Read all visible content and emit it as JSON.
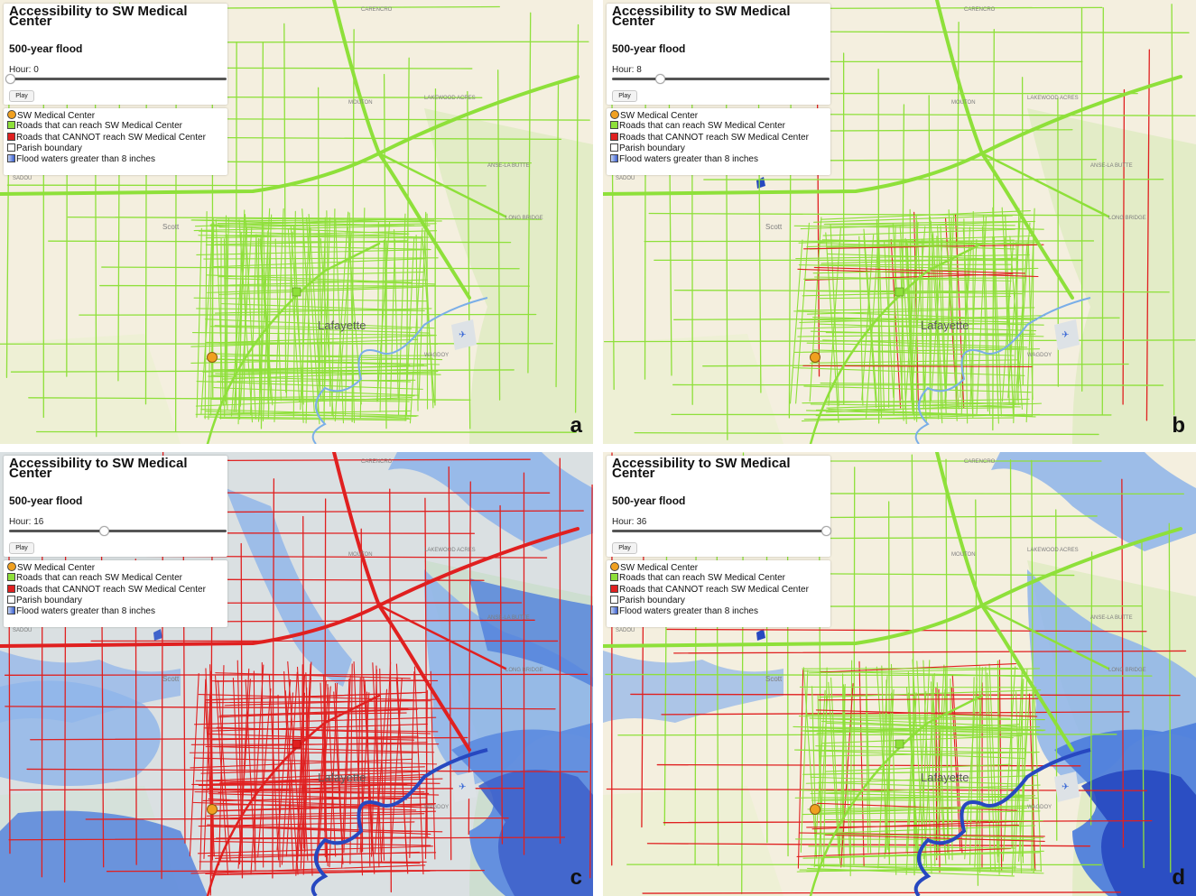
{
  "common": {
    "title": "Accessibility to SW Medical Center",
    "subtitle": "500-year flood",
    "play_label": "Play",
    "city_label": "Lafayette",
    "place_labels": [
      "Scott",
      "CARENCRO",
      "MOUTON",
      "LAKEWOOD ACRES",
      "ANSE-LA BUTTE",
      "LONG BRIDGE",
      "SADOU",
      "WAGDOY"
    ],
    "legend": [
      {
        "label": "SW Medical Center",
        "color": "#f0a020",
        "icon": "orange-circle-icon"
      },
      {
        "label": "Roads that can reach SW Medical Center",
        "color": "#8ee03a",
        "icon": "green-square-icon"
      },
      {
        "label": "Roads that CANNOT reach SW Medical Center",
        "color": "#e02020",
        "icon": "red-square-icon"
      },
      {
        "label": "Parish boundary",
        "color": "#ffffff",
        "icon": "white-square-icon"
      },
      {
        "label": "Flood waters greater than 8 inches",
        "color": "#3a5fd0",
        "icon": "blue-gradient-square-icon"
      }
    ]
  },
  "panels": [
    {
      "letter": "a",
      "hour_text": "Hour: 0",
      "slider_fraction": 0.0,
      "flood_level": 0,
      "road_color": "#8ee03a"
    },
    {
      "letter": "b",
      "hour_text": "Hour: 8",
      "slider_fraction": 0.22,
      "flood_level": 1,
      "road_color": "#8ee03a"
    },
    {
      "letter": "c",
      "hour_text": "Hour: 16",
      "slider_fraction": 0.44,
      "flood_level": 3,
      "road_color": "#e02020"
    },
    {
      "letter": "d",
      "hour_text": "Hour: 36",
      "slider_fraction": 1.0,
      "flood_level": 2,
      "road_color": "#8ee03a"
    }
  ],
  "colors": {
    "map_bg": "#f4efdf",
    "green_area": "#e3ecc7",
    "water_light": "#8db4ea",
    "water_mid": "#4f7fdc",
    "water_dark": "#2748c0",
    "marker": "#f0a020"
  }
}
